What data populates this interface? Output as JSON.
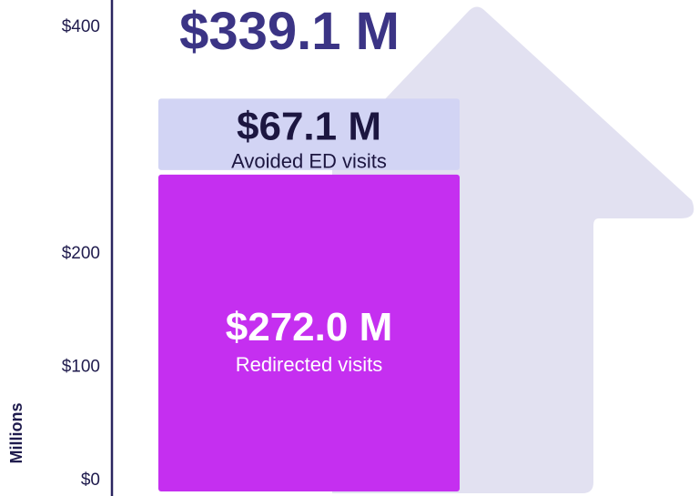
{
  "chart_data": {
    "type": "bar",
    "stacked": true,
    "ylabel": "Millions",
    "ylim": [
      0,
      420
    ],
    "yticks": [
      {
        "value": 0,
        "label": "$0"
      },
      {
        "value": 100,
        "label": "$100"
      },
      {
        "value": 200,
        "label": "$200"
      },
      {
        "value": 400,
        "label": "$400"
      }
    ],
    "total": {
      "value": 339.1,
      "label": "$339.1 M"
    },
    "segments": [
      {
        "name": "Redirected visits",
        "value": 272.0,
        "value_label": "$272.0 M",
        "color": "#c52ff0",
        "text_color": "#ffffff"
      },
      {
        "name": "Avoided ED visits",
        "value": 67.1,
        "value_label": "$67.1 M",
        "color": "#d2d4f4",
        "text_color": "#1c1640"
      }
    ]
  },
  "colors": {
    "axis": "#2a2560",
    "text": "#1f1b4d",
    "total_text": "#3b3485",
    "arrow_fill": "#e2e1f1"
  }
}
